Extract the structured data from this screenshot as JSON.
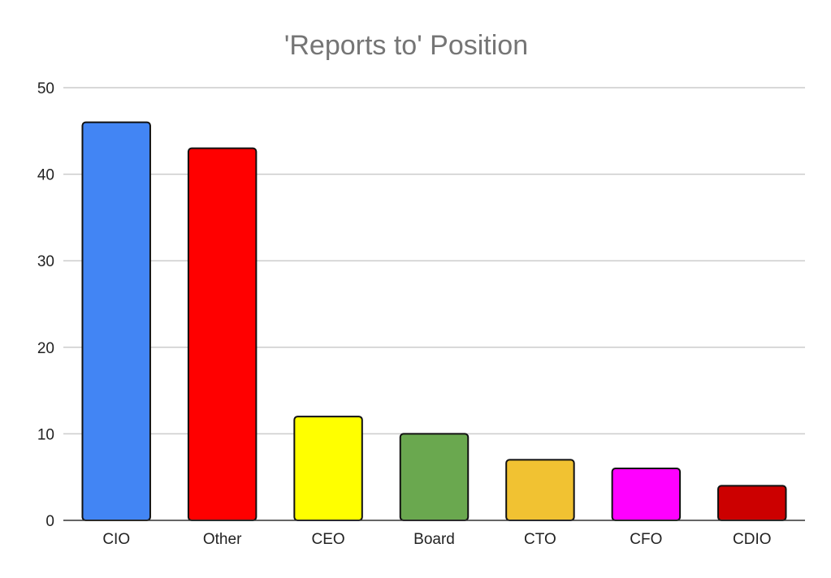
{
  "chart_data": {
    "type": "bar",
    "title": "'Reports to' Position",
    "xlabel": "",
    "ylabel": "",
    "categories": [
      "CIO",
      "Other",
      "CEO",
      "Board",
      "CTO",
      "CFO",
      "CDIO"
    ],
    "values": [
      46,
      43,
      12,
      10,
      7,
      6,
      4
    ],
    "colors": [
      "#4285f4",
      "#ff0000",
      "#ffff00",
      "#6aa84f",
      "#f1c232",
      "#ff00ff",
      "#cc0000"
    ],
    "ylim": [
      0,
      50
    ],
    "yticks": [
      0,
      10,
      20,
      30,
      40,
      50
    ],
    "grid": true,
    "legend": "none"
  }
}
